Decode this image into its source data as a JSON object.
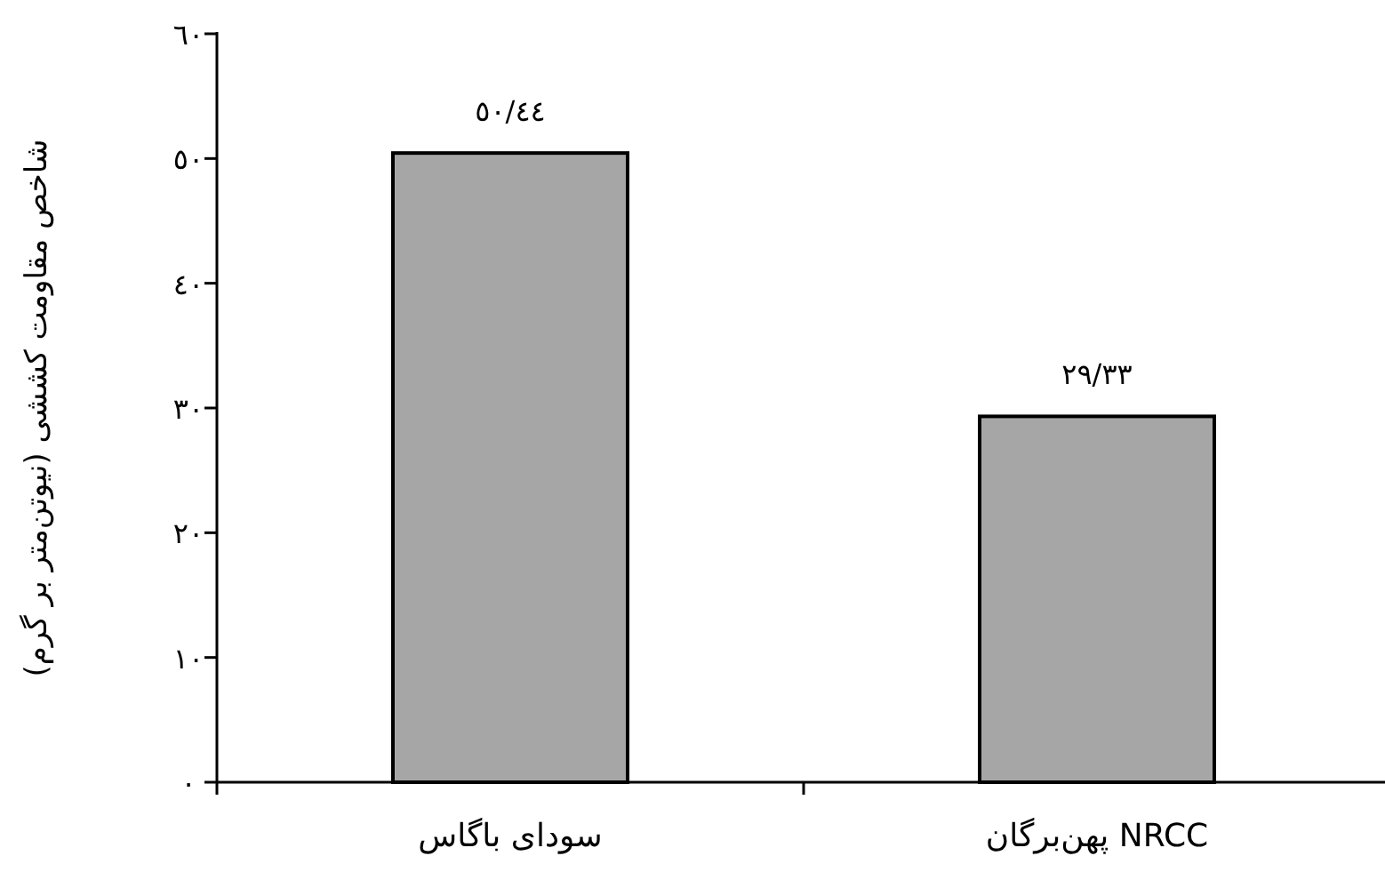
{
  "chart_data": {
    "type": "bar",
    "ylabel": "شاخص مقاومت کششی (نیوتن‌متر بر گرم)",
    "categories": [
      "سودای باگاس",
      "پهن‌برگان NRCC"
    ],
    "values": [
      50.44,
      29.33
    ],
    "color": "#a6a6a6",
    "value_labels": [
      "٥٠/٤٤",
      "٢٩/٣٣"
    ],
    "ylim": [
      0,
      60
    ],
    "yticks": [
      {
        "value": 0,
        "label": "٠"
      },
      {
        "value": 10,
        "label": "١٠"
      },
      {
        "value": 20,
        "label": "٢٠"
      },
      {
        "value": 30,
        "label": "٣٠"
      },
      {
        "value": 40,
        "label": "٤٠"
      },
      {
        "value": 50,
        "label": "٥٠"
      },
      {
        "value": 60,
        "label": "٦٠"
      }
    ],
    "grid": false
  }
}
